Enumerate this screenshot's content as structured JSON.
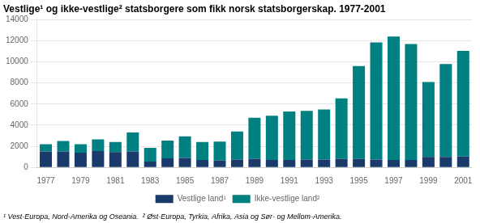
{
  "chart_data": {
    "type": "bar",
    "title": "Vestlige¹ og ikke-vestlige² statsborgere som fikk norsk statsborgerskap. 1977-2001",
    "annotations": [
      "¹ Vest-Europa, Nord-Amerika og Oseania.  ² Øst-Europa, Tyrkia, Afrika, Asia og Sør- og Mellom-Amerika."
    ],
    "categories": [
      "1977",
      null,
      "1979",
      null,
      "1981",
      null,
      "1983",
      null,
      "1985",
      null,
      "1987",
      null,
      "1989",
      null,
      "1991",
      null,
      "1993",
      null,
      "1995",
      null,
      "1997",
      null,
      "1999",
      null,
      "2001"
    ],
    "series": [
      {
        "name": "Vestlige land¹",
        "color": "#1a3a6b",
        "values": [
          1500,
          1500,
          1400,
          1550,
          1450,
          1500,
          550,
          850,
          900,
          700,
          650,
          750,
          800,
          700,
          700,
          750,
          750,
          800,
          800,
          750,
          700,
          700,
          1000,
          1000,
          1050
        ]
      },
      {
        "name": "Ikke-vestlige land²",
        "color": "#008080",
        "values": [
          700,
          1000,
          800,
          1100,
          950,
          1800,
          1300,
          1700,
          2050,
          1700,
          1800,
          2650,
          3900,
          4200,
          4600,
          4600,
          4750,
          5750,
          8800,
          11100,
          11700,
          11000,
          7100,
          8800,
          10000
        ]
      }
    ],
    "stacked": true,
    "ylim": [
      0,
      14000
    ],
    "yticks": [
      0,
      2000,
      4000,
      6000,
      8000,
      10000,
      12000,
      14000
    ],
    "grid": true,
    "legend": "bottom"
  }
}
